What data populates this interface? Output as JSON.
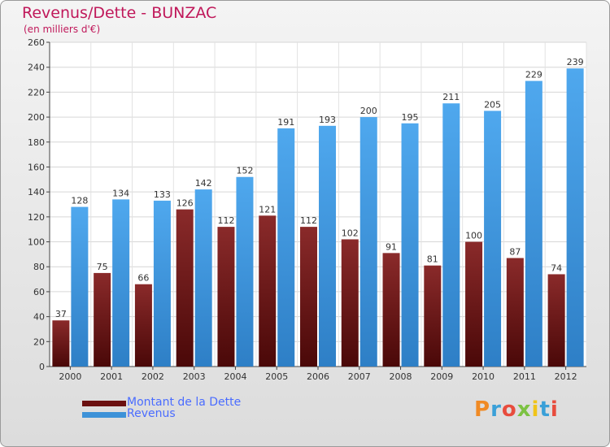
{
  "header": {
    "title": "Revenus/Dette - BUNZAC",
    "subtitle": "(en milliers d'€)"
  },
  "brand": {
    "text": "Proxiti",
    "letters": [
      {
        "ch": "P",
        "color": "#f08a24"
      },
      {
        "ch": "r",
        "color": "#3aa0d8"
      },
      {
        "ch": "o",
        "color": "#e84c3d"
      },
      {
        "ch": "x",
        "color": "#7cc242"
      },
      {
        "ch": "i",
        "color": "#f0c419"
      },
      {
        "ch": "t",
        "color": "#3aa0d8"
      },
      {
        "ch": "i",
        "color": "#e84c3d"
      }
    ]
  },
  "legend": [
    {
      "label": "Montant de la Dette",
      "color": "#6b1010"
    },
    {
      "label": "Revenus",
      "color": "#3d92d8"
    }
  ],
  "chart_data": {
    "type": "bar",
    "title": "Revenus/Dette - BUNZAC",
    "subtitle": "(en milliers d'€)",
    "categories": [
      "2000",
      "2001",
      "2002",
      "2003",
      "2004",
      "2005",
      "2006",
      "2007",
      "2008",
      "2009",
      "2010",
      "2011",
      "2012"
    ],
    "series": [
      {
        "name": "Montant de la Dette",
        "color": "#7a1a1a",
        "values": [
          37,
          75,
          66,
          126,
          112,
          121,
          112,
          102,
          91,
          81,
          100,
          87,
          74
        ]
      },
      {
        "name": "Revenus",
        "color": "#4aa3e8",
        "values": [
          128,
          134,
          133,
          142,
          152,
          191,
          193,
          200,
          195,
          211,
          205,
          229,
          239
        ]
      }
    ],
    "ylim": [
      0,
      260
    ],
    "yticks": [
      0,
      20,
      40,
      60,
      80,
      100,
      120,
      140,
      160,
      180,
      200,
      220,
      240,
      260
    ],
    "grid": true,
    "legend_position": "bottom-left"
  }
}
